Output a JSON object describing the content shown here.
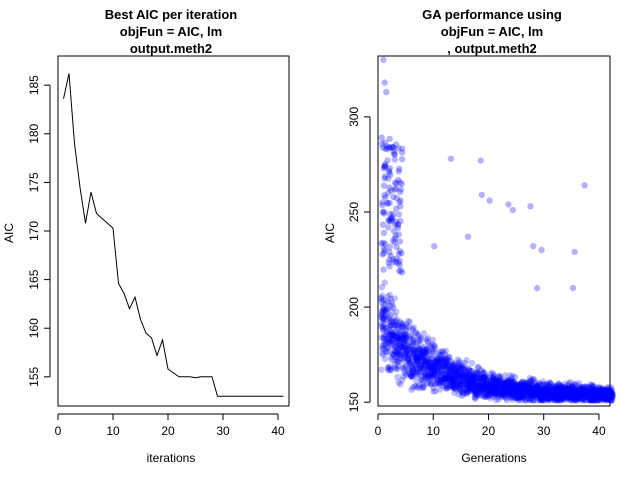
{
  "chart_data": [
    {
      "type": "line",
      "title": [
        "Best AIC per iteration",
        "objFun = AIC, lm",
        "output.meth2"
      ],
      "xlabel": "iterations",
      "ylabel": "AIC",
      "xlim": [
        0,
        42
      ],
      "ylim": [
        152,
        188
      ],
      "xticks": [
        0,
        10,
        20,
        30,
        40
      ],
      "yticks": [
        155,
        160,
        165,
        170,
        175,
        180,
        185
      ],
      "grid": false,
      "x": [
        1,
        2,
        3,
        4,
        5,
        6,
        7,
        8,
        9,
        10,
        11,
        12,
        13,
        14,
        15,
        16,
        17,
        18,
        19,
        20,
        21,
        22,
        23,
        24,
        25,
        26,
        27,
        28,
        29,
        30,
        31,
        32,
        33,
        34,
        35,
        36,
        37,
        38,
        39,
        40,
        41
      ],
      "values": [
        183.6,
        186.2,
        179.0,
        174.5,
        170.8,
        174.0,
        171.8,
        171.3,
        170.8,
        170.3,
        164.6,
        163.6,
        162.0,
        163.2,
        160.9,
        159.5,
        159.0,
        157.2,
        158.8,
        155.8,
        155.4,
        155.0,
        155.0,
        155.0,
        154.9,
        155.0,
        155.0,
        155.0,
        153.0,
        153.0,
        153.0,
        153.0,
        153.0,
        153.0,
        153.0,
        153.0,
        153.0,
        153.0,
        153.0,
        153.0,
        153.0
      ]
    },
    {
      "type": "scatter",
      "title": [
        "GA performance using",
        "objFun = AIC, lm",
        ",  output.meth2"
      ],
      "xlabel": "Generations",
      "ylabel": "AIC",
      "xlim": [
        0,
        42
      ],
      "ylim": [
        148,
        332
      ],
      "xticks": [
        0,
        10,
        20,
        30,
        40
      ],
      "yticks": [
        150,
        200,
        250,
        300
      ],
      "grid": false,
      "point_color": "#0000ff",
      "outliers": {
        "x": [
          1.0,
          1.2,
          1.5,
          10.2,
          13.2,
          16.3,
          18.6,
          18.8,
          20.2,
          23.6,
          24.4,
          27.6,
          28.1,
          28.8,
          29.6,
          35.3,
          35.6,
          37.4
        ],
        "y": [
          330,
          318,
          313,
          232,
          278,
          237,
          277,
          259,
          256,
          254,
          251,
          253,
          232,
          210,
          230,
          210,
          229,
          264
        ]
      },
      "main_trend": {
        "description": "dense point cloud per generation 1..42 decaying from ~190 toward ~153",
        "generations": [
          1,
          42
        ],
        "center_start": 190,
        "center_end": 153.5
      },
      "early_columns": {
        "generations": [
          1,
          2,
          3,
          4
        ],
        "y_range": [
          218,
          290
        ]
      }
    }
  ]
}
